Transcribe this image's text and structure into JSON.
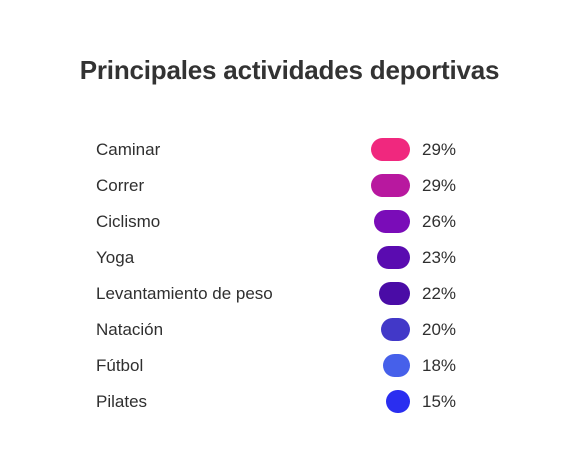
{
  "chart_data": {
    "type": "table",
    "title": "Principales actividades deportivas",
    "rows": [
      {
        "label": "Caminar",
        "value": 29,
        "display": "29%",
        "color": "#f0287e"
      },
      {
        "label": "Correr",
        "value": 29,
        "display": "29%",
        "color": "#b8189f"
      },
      {
        "label": "Ciclismo",
        "value": 26,
        "display": "26%",
        "color": "#7a0cb8"
      },
      {
        "label": "Yoga",
        "value": 23,
        "display": "23%",
        "color": "#5a0bb0"
      },
      {
        "label": "Levantamiento de peso",
        "value": 22,
        "display": "22%",
        "color": "#4a0ca6"
      },
      {
        "label": "Natación",
        "value": 20,
        "display": "20%",
        "color": "#4238c8"
      },
      {
        "label": "Fútbol",
        "value": 18,
        "display": "18%",
        "color": "#4660ea"
      },
      {
        "label": "Pilates",
        "value": 15,
        "display": "15%",
        "color": "#2a2ef0"
      }
    ]
  }
}
